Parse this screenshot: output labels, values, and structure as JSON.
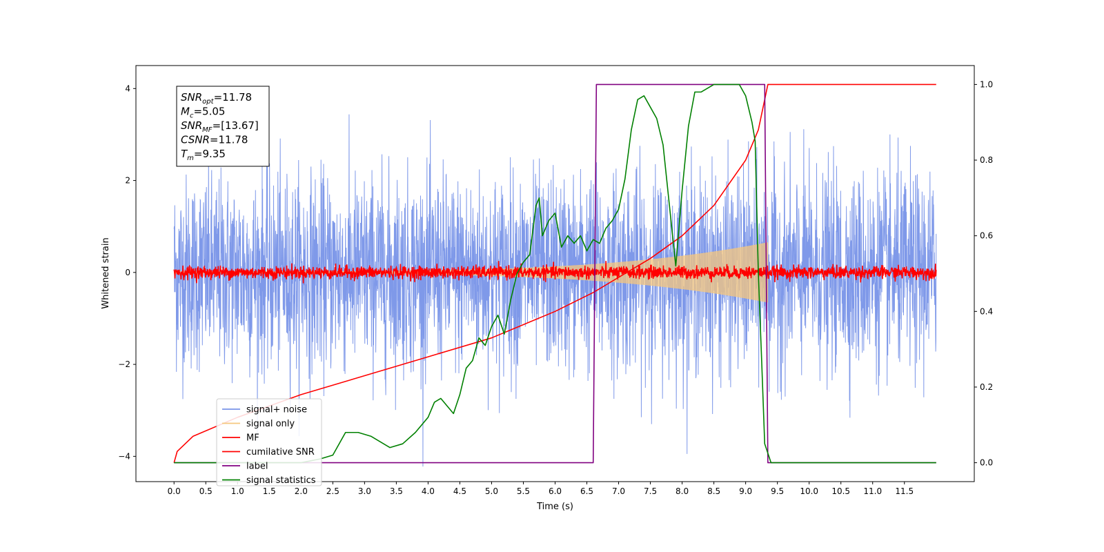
{
  "chart_data": {
    "type": "line",
    "title": "",
    "xlabel": "Time (s)",
    "ylabel": "Whitened strain",
    "ylabel_right": "",
    "xlim": [
      -0.6,
      12.6
    ],
    "ylim": [
      -4.55,
      4.5
    ],
    "ylim_right": [
      -0.05,
      1.05
    ],
    "x_ticks": [
      "0.0",
      "0.5",
      "1.0",
      "1.5",
      "2.0",
      "2.5",
      "3.0",
      "3.5",
      "4.0",
      "4.5",
      "5.0",
      "5.5",
      "6.0",
      "6.5",
      "7.0",
      "7.5",
      "8.0",
      "8.5",
      "9.0",
      "9.5",
      "10.0",
      "10.5",
      "11.0",
      "11.5"
    ],
    "y_ticks_left": [
      "4",
      "2",
      "0",
      "−2",
      "−4"
    ],
    "y_ticks_right": [
      "1.0",
      "0.8",
      "0.6",
      "0.4",
      "0.2",
      "0.0"
    ],
    "grid": false,
    "legend_location": "lower-left",
    "info_box": {
      "lines": [
        {
          "symbol": "SNR",
          "sub": "opt",
          "value": "=11.78"
        },
        {
          "symbol": "M",
          "sub": "c",
          "value": "=5.05"
        },
        {
          "symbol": "SNR",
          "sub": "MF",
          "value": "=[13.67]"
        },
        {
          "symbol": "CSNR",
          "sub": "",
          "value": "=11.78"
        },
        {
          "symbol": "T",
          "sub": "m",
          "value": "=9.35"
        }
      ]
    },
    "series": [
      {
        "name": "signal+ noise",
        "color": "#7893e8",
        "axis": "left",
        "kind": "noise",
        "amplitude": 1.05,
        "t_start": 0.0,
        "t_end": 12.0
      },
      {
        "name": "signal only",
        "color": "#f5c77e",
        "axis": "left",
        "kind": "chirp-envelope",
        "amplitude_start": 0.02,
        "amplitude_end": 0.65,
        "t_start": 0.0,
        "t_end": 9.35
      },
      {
        "name": "MF",
        "color": "#ff0000",
        "axis": "left",
        "kind": "noise",
        "amplitude": 0.07,
        "t_start": 0.0,
        "t_end": 12.0
      },
      {
        "name": "cumilative SNR",
        "color": "#ff0000",
        "axis": "right",
        "x": [
          0.0,
          0.05,
          0.3,
          1.0,
          2.0,
          3.0,
          4.0,
          5.0,
          6.0,
          6.6,
          7.0,
          7.5,
          8.0,
          8.5,
          9.0,
          9.2,
          9.35,
          12.0
        ],
        "y": [
          0.0,
          0.03,
          0.07,
          0.12,
          0.18,
          0.23,
          0.28,
          0.33,
          0.4,
          0.45,
          0.49,
          0.54,
          0.6,
          0.68,
          0.8,
          0.88,
          1.0,
          1.0
        ]
      },
      {
        "name": "label",
        "color": "#800080",
        "axis": "right",
        "x": [
          0.0,
          6.6,
          6.65,
          9.3,
          9.35,
          12.0
        ],
        "y": [
          0.0,
          0.0,
          1.0,
          1.0,
          0.0,
          0.0
        ]
      },
      {
        "name": "signal statistics",
        "color": "#008000",
        "axis": "right",
        "x": [
          0.0,
          0.5,
          1.0,
          1.5,
          2.0,
          2.3,
          2.5,
          2.7,
          2.9,
          3.1,
          3.4,
          3.6,
          3.8,
          4.0,
          4.1,
          4.2,
          4.3,
          4.4,
          4.5,
          4.6,
          4.7,
          4.8,
          4.9,
          5.0,
          5.1,
          5.2,
          5.3,
          5.4,
          5.5,
          5.6,
          5.7,
          5.75,
          5.8,
          5.9,
          6.0,
          6.1,
          6.2,
          6.3,
          6.4,
          6.5,
          6.6,
          6.7,
          6.8,
          6.9,
          7.0,
          7.1,
          7.2,
          7.3,
          7.4,
          7.5,
          7.6,
          7.7,
          7.8,
          7.9,
          8.0,
          8.1,
          8.2,
          8.3,
          8.5,
          8.7,
          8.9,
          9.0,
          9.1,
          9.15,
          9.2,
          9.25,
          9.3,
          9.4,
          9.5,
          10.0,
          10.5,
          11.0,
          11.5,
          12.0
        ],
        "y": [
          0.0,
          0.0,
          0.0,
          0.0,
          0.0,
          0.01,
          0.02,
          0.08,
          0.08,
          0.07,
          0.04,
          0.05,
          0.08,
          0.12,
          0.16,
          0.17,
          0.15,
          0.13,
          0.18,
          0.25,
          0.27,
          0.33,
          0.31,
          0.36,
          0.39,
          0.34,
          0.43,
          0.5,
          0.53,
          0.55,
          0.68,
          0.7,
          0.6,
          0.64,
          0.66,
          0.57,
          0.6,
          0.58,
          0.6,
          0.56,
          0.59,
          0.58,
          0.62,
          0.64,
          0.67,
          0.75,
          0.88,
          0.96,
          0.97,
          0.94,
          0.91,
          0.84,
          0.68,
          0.52,
          0.72,
          0.89,
          0.98,
          0.98,
          1.0,
          1.0,
          1.0,
          0.97,
          0.9,
          0.85,
          0.5,
          0.28,
          0.05,
          0.0,
          0.0,
          0.0,
          0.0,
          0.0,
          0.0,
          0.0
        ]
      }
    ]
  }
}
